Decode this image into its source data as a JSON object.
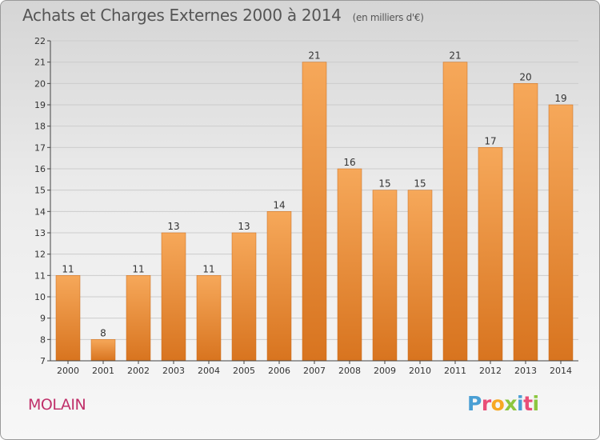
{
  "header": {
    "title": "Achats et Charges Externes 2000 à 2014",
    "subtitle": "(en milliers d'€)"
  },
  "footer": {
    "commune": "MOLAIN",
    "logo_letters": [
      "P",
      "r",
      "o",
      "x",
      "i",
      "t",
      "i"
    ],
    "logo_colors": [
      "#4a9fd4",
      "#e94e77",
      "#f7a823",
      "#8cc63f",
      "#4a9fd4",
      "#e94e77",
      "#8cc63f"
    ]
  },
  "colors": {
    "bar_light": "#f6a85a",
    "bar_dark": "#d8741f",
    "axis": "#444444",
    "grid": "#cccccc"
  },
  "chart_data": {
    "type": "bar",
    "title": "Achats et Charges Externes 2000 à 2014",
    "subtitle": "(en milliers d'€)",
    "categories": [
      "2000",
      "2001",
      "2002",
      "2003",
      "2004",
      "2005",
      "2006",
      "2007",
      "2008",
      "2009",
      "2010",
      "2011",
      "2012",
      "2013",
      "2014"
    ],
    "values": [
      11,
      8,
      11,
      13,
      11,
      13,
      14,
      21,
      16,
      15,
      15,
      21,
      17,
      20,
      19
    ],
    "ylim": [
      7,
      22
    ],
    "yticks": [
      7,
      8,
      9,
      10,
      11,
      12,
      13,
      14,
      15,
      16,
      17,
      18,
      19,
      20,
      21,
      22
    ],
    "grid": true,
    "xlabel": "",
    "ylabel": ""
  }
}
